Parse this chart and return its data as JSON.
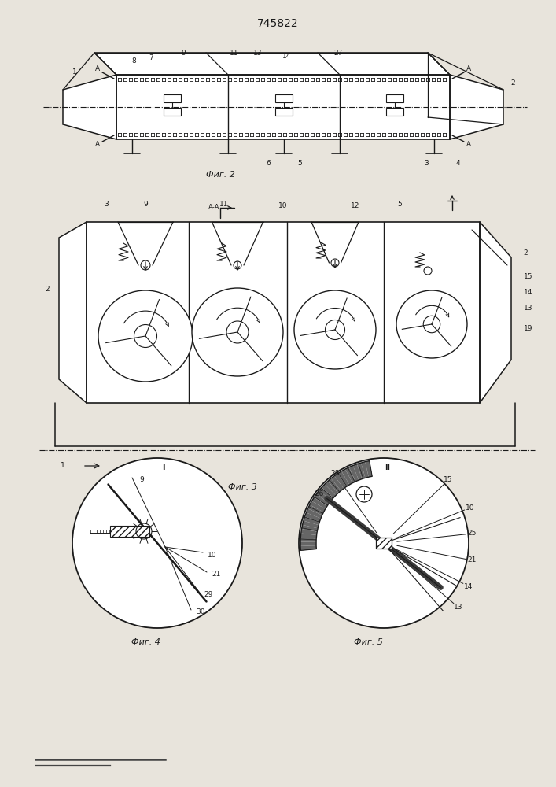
{
  "title": "745822",
  "bg_color": "#e8e4dc",
  "line_color": "#1a1a1a",
  "fig2_label": "Фиг. 2",
  "fig3_label": "Фиг. 3",
  "fig4_label": "Фиг. 4",
  "fig5_label": "Фиг. 5"
}
